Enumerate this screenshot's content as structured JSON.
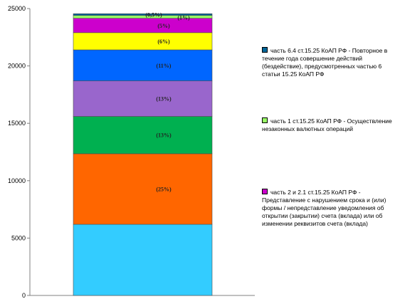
{
  "chart_data": {
    "type": "bar",
    "stacked": true,
    "categories": [
      ""
    ],
    "ylim": [
      0,
      25000
    ],
    "yticks": [
      "0",
      "5000",
      "10000",
      "15000",
      "20000",
      "25000"
    ],
    "grid": false,
    "legend_position": "right",
    "series": [
      {
        "name": "",
        "values": [
          6200
        ],
        "label": "",
        "color": "#33ccff"
      },
      {
        "name": "",
        "values": [
          6150
        ],
        "label": "(25%)",
        "color": "#ff6600"
      },
      {
        "name": "",
        "values": [
          3250
        ],
        "label": "(13%)",
        "color": "#00b050"
      },
      {
        "name": "",
        "values": [
          3100
        ],
        "label": "(13%)",
        "color": "#9966cc"
      },
      {
        "name": "",
        "values": [
          2700
        ],
        "label": "(11%)",
        "color": "#0066ff"
      },
      {
        "name": "",
        "values": [
          1500
        ],
        "label": "(6%)",
        "color": "#ffff00"
      },
      {
        "name": "",
        "values": [
          1250
        ],
        "label": "(5%)",
        "color": "#cc00cc"
      },
      {
        "name": "",
        "values": [
          250
        ],
        "label": "(1%)",
        "color": "#99ff66"
      },
      {
        "name": "",
        "values": [
          150
        ],
        "label": "(0,5%)",
        "color": "#006699"
      }
    ],
    "legend": [
      {
        "text": "часть 6.4 ст.15.25 КоАП РФ - Повторное в течение года совершение действий (бездействие), предусмотренных частью 6 статьи 15.25 КоАП РФ",
        "color": "#006699"
      },
      {
        "text": "часть 1 ст.15.25 КоАП РФ  - Осуществление незаконных валютных операций",
        "color": "#99ff66"
      },
      {
        "text": "часть 2 и 2.1 ст.15.25 КоАП РФ - Представление с нарушением срока и (или) формы / непредставление уведомления об открытии (закрытии) счета (вклада) или об изменении реквизитов счета (вклада)",
        "color": "#cc00cc"
      }
    ]
  }
}
